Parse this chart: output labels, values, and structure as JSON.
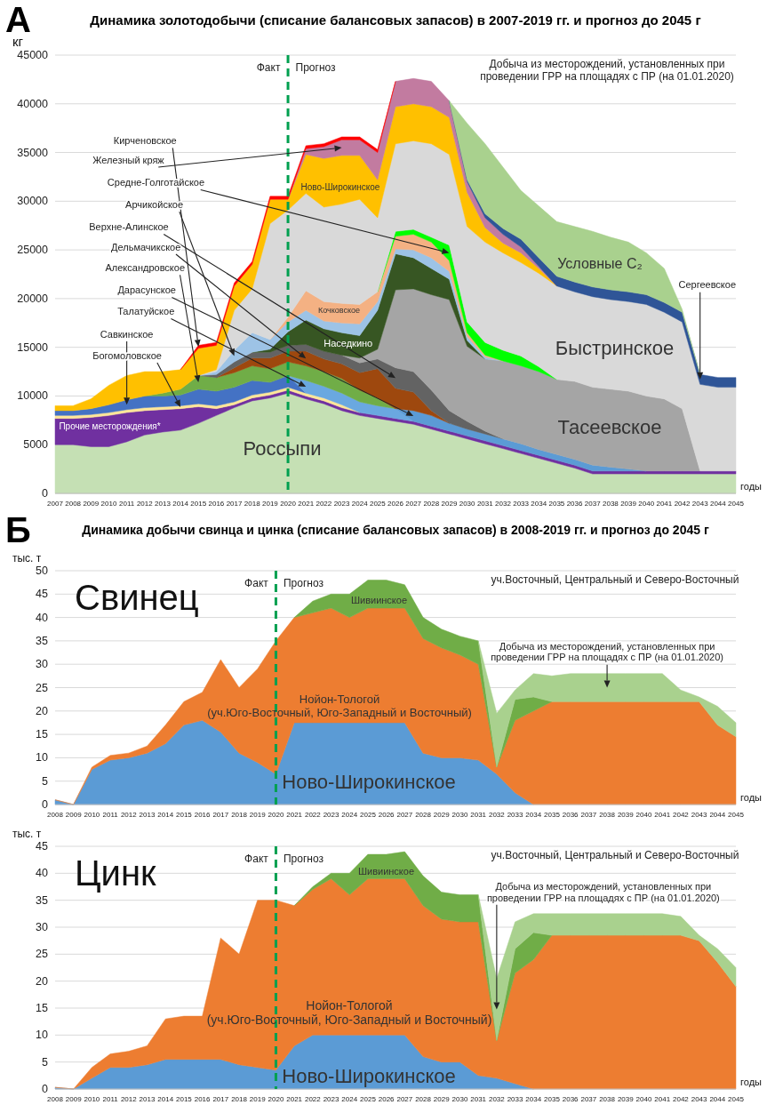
{
  "chart_data": [
    {
      "type": "area",
      "stacked": true,
      "title": "Динамика золотодобычи (списание балансовых запасов) в 2007-2019 гг. и прогноз до 2045 г",
      "xlabel": "годы",
      "ylabel": "кг",
      "grid": "y",
      "x": [
        2007,
        2008,
        2009,
        2010,
        2011,
        2012,
        2013,
        2014,
        2015,
        2016,
        2017,
        2018,
        2019,
        2020,
        2021,
        2022,
        2023,
        2024,
        2025,
        2026,
        2027,
        2028,
        2029,
        2030,
        2031,
        2032,
        2033,
        2034,
        2035,
        2036,
        2037,
        2038,
        2039,
        2040,
        2041,
        2042,
        2043,
        2044,
        2045
      ],
      "xlim": [
        2007,
        2045
      ],
      "xticks": [
        2007,
        2008,
        2009,
        2010,
        2011,
        2012,
        2013,
        2014,
        2015,
        2016,
        2017,
        2018,
        2019,
        2020,
        2021,
        2022,
        2023,
        2024,
        2025,
        2026,
        2027,
        2028,
        2029,
        2030,
        2031,
        2032,
        2033,
        2034,
        2035,
        2036,
        2037,
        2038,
        2039,
        2040,
        2041,
        2042,
        2043,
        2044,
        2045
      ],
      "ylim": [
        0,
        45000
      ],
      "yticks": [
        0,
        5000,
        10000,
        15000,
        20000,
        25000,
        30000,
        35000,
        40000,
        45000
      ],
      "ref_lines": [
        {
          "axis": "x",
          "value": 2020,
          "color": "#00a050",
          "line_style": "dashed"
        }
      ],
      "annotations": [
        "А",
        "Факт",
        "Прогноз",
        "Добыча из месторождений, установленных при\nпроведении ГРР на площадях с ПР (на 01.01.2020)"
      ],
      "series": [
        {
          "name": "Россыпи",
          "color": "#c5e0b4",
          "values": [
            5000,
            5000,
            4800,
            4800,
            5300,
            6000,
            6300,
            6500,
            7200,
            8000,
            8800,
            9500,
            9800,
            10300,
            9700,
            9200,
            8500,
            8000,
            7700,
            7400,
            7100,
            6600,
            6100,
            5600,
            5100,
            4600,
            4100,
            3600,
            3100,
            2600,
            2000,
            2000,
            2000,
            2000,
            2000,
            2000,
            2000,
            2000,
            2000
          ]
        },
        {
          "name": "Прочие месторождения*",
          "color": "#7030a0",
          "values": [
            2700,
            2700,
            3000,
            3200,
            3000,
            2500,
            2300,
            2200,
            1700,
            700,
            300,
            300,
            300,
            300,
            300,
            300,
            300,
            300,
            300,
            300,
            300,
            300,
            300,
            300,
            300,
            300,
            300,
            300,
            300,
            300,
            300,
            300,
            300,
            300,
            300,
            300,
            300,
            300,
            300
          ]
        },
        {
          "name": "Богомоловское",
          "color": "#ffe699",
          "values": [
            300,
            300,
            300,
            300,
            300,
            300,
            300,
            300,
            300,
            300,
            300,
            300,
            300,
            300,
            300,
            300,
            300,
            0,
            null,
            null,
            null,
            null,
            null,
            null,
            null,
            null,
            null,
            null,
            null,
            null,
            null,
            null,
            null,
            null,
            null,
            null,
            null,
            null,
            null
          ]
        },
        {
          "name": "Савкинское",
          "color": "#4472c4",
          "values": [
            500,
            500,
            600,
            800,
            1000,
            1200,
            1100,
            1100,
            1500,
            1500,
            1500,
            1500,
            1000,
            1200,
            0,
            null,
            null,
            null,
            null,
            null,
            null,
            null,
            null,
            null,
            null,
            null,
            null,
            null,
            null,
            null,
            null,
            null,
            null,
            null,
            null,
            null,
            null,
            null,
            null
          ]
        },
        {
          "name": "Талатуйское",
          "color": "#6aa8e0",
          "values": [
            null,
            null,
            null,
            null,
            null,
            null,
            null,
            null,
            null,
            null,
            null,
            null,
            null,
            0,
            1300,
            1200,
            1200,
            1100,
            1000,
            1000,
            0,
            null,
            null,
            null,
            null,
            null,
            null,
            null,
            null,
            null,
            null,
            null,
            null,
            null,
            null,
            null,
            null,
            null,
            null
          ]
        },
        {
          "name": "Дарасунское",
          "color": "#5b9bd5",
          "values": [
            null,
            null,
            null,
            null,
            null,
            null,
            null,
            null,
            null,
            null,
            null,
            null,
            null,
            null,
            null,
            null,
            null,
            null,
            null,
            0,
            1100,
            1100,
            800,
            700,
            700,
            700,
            700,
            600,
            600,
            600,
            600,
            400,
            200,
            0,
            null,
            null,
            null,
            null,
            null
          ]
        },
        {
          "name": "Александровское",
          "color": "#70ad47",
          "values": [
            null,
            null,
            null,
            null,
            null,
            0,
            300,
            600,
            1400,
            1400,
            1500,
            1500,
            1400,
            1400,
            1500,
            1500,
            1500,
            1200,
            800,
            0,
            null,
            null,
            null,
            null,
            null,
            null,
            null,
            null,
            null,
            null,
            null,
            null,
            null,
            null,
            null,
            null,
            null,
            null,
            null
          ]
        },
        {
          "name": "Дельмачикское",
          "color": "#9e480e",
          "values": [
            null,
            null,
            null,
            null,
            null,
            null,
            null,
            null,
            null,
            0,
            500,
            800,
            1100,
            1100,
            1500,
            1300,
            1500,
            1800,
            3000,
            2100,
            1900,
            500,
            0,
            null,
            null,
            null,
            null,
            null,
            null,
            null,
            null,
            null,
            null,
            null,
            null,
            null,
            null,
            null,
            null
          ]
        },
        {
          "name": "Верхне-Алинское",
          "color": "#636363",
          "values": [
            null,
            null,
            null,
            null,
            null,
            null,
            null,
            null,
            0,
            300,
            600,
            600,
            600,
            600,
            700,
            800,
            900,
            1000,
            1000,
            2100,
            2100,
            2100,
            1300,
            800,
            300,
            0,
            null,
            null,
            null,
            null,
            null,
            null,
            null,
            null,
            null,
            null,
            null,
            null,
            null
          ]
        },
        {
          "name": "Тасеевское",
          "color": "#a5a5a5",
          "values": [
            null,
            null,
            null,
            null,
            null,
            null,
            null,
            null,
            null,
            null,
            null,
            null,
            null,
            null,
            null,
            null,
            0,
            500,
            1000,
            8000,
            8500,
            9800,
            11400,
            7700,
            7400,
            8000,
            8000,
            8000,
            7700,
            8000,
            8000,
            8000,
            8000,
            7700,
            7400,
            6400,
            0,
            null,
            null
          ]
        },
        {
          "name": "Наседкино",
          "color": "#375623",
          "values": [
            null,
            null,
            null,
            null,
            null,
            null,
            null,
            null,
            null,
            null,
            null,
            0,
            300,
            1400,
            2500,
            2300,
            2300,
            2300,
            4000,
            3700,
            3200,
            2700,
            2100,
            600,
            0,
            null,
            null,
            null,
            null,
            null,
            null,
            null,
            null,
            null,
            null,
            null,
            null,
            null,
            null
          ]
        },
        {
          "name": "Арчикойское",
          "color": "#9dc3e6",
          "values": [
            null,
            null,
            null,
            null,
            null,
            null,
            null,
            null,
            0,
            300,
            1200,
            2000,
            1000,
            1000,
            1000,
            800,
            1000,
            1200,
            900,
            500,
            800,
            1100,
            800,
            400,
            200,
            0,
            null,
            null,
            null,
            null,
            null,
            null,
            null,
            null,
            null,
            null,
            null,
            null,
            null
          ]
        },
        {
          "name": "Кочковское",
          "color": "#f4b183",
          "values": [
            null,
            null,
            null,
            null,
            null,
            null,
            null,
            null,
            null,
            null,
            null,
            null,
            0,
            500,
            2000,
            2000,
            2000,
            2000,
            1000,
            1300,
            1600,
            1600,
            1100,
            400,
            200,
            0,
            null,
            null,
            null,
            null,
            null,
            null,
            null,
            null,
            null,
            null,
            null,
            null,
            null
          ]
        },
        {
          "name": "Средне-Голготайское",
          "color": "#00ff00",
          "values": [
            null,
            null,
            null,
            null,
            null,
            null,
            null,
            null,
            null,
            null,
            null,
            null,
            null,
            null,
            null,
            null,
            null,
            null,
            0,
            500,
            500,
            500,
            1600,
            1100,
            1300,
            1100,
            1000,
            500,
            0,
            null,
            null,
            null,
            null,
            null,
            null,
            null,
            null,
            null,
            null
          ]
        },
        {
          "name": "Быстринское",
          "color": "#d9d9d9",
          "values": [
            null,
            null,
            null,
            null,
            null,
            null,
            null,
            null,
            0,
            200,
            4100,
            4500,
            11900,
            11000,
            10000,
            9700,
            10200,
            10800,
            7600,
            9000,
            9100,
            9600,
            9300,
            9800,
            10300,
            10000,
            9600,
            9600,
            9600,
            9200,
            9300,
            9200,
            9200,
            9400,
            8900,
            8900,
            8900,
            8600,
            8600
          ]
        },
        {
          "name": "Ново-Широкинское",
          "color": "#ffc000",
          "values": [
            500,
            500,
            1000,
            2000,
            2500,
            2500,
            2200,
            2000,
            2800,
            2500,
            2500,
            2500,
            2500,
            1100,
            4000,
            5000,
            5000,
            4500,
            3900,
            3800,
            3800,
            3800,
            3800,
            3500,
            1500,
            1000,
            1000,
            500,
            0,
            null,
            null,
            null,
            null,
            null,
            null,
            null,
            null,
            null,
            null
          ]
        },
        {
          "name": "Железный кряж",
          "color": "#c27ba0",
          "values": [
            null,
            null,
            null,
            null,
            null,
            null,
            null,
            null,
            null,
            null,
            null,
            null,
            null,
            0,
            600,
            1200,
            1600,
            1600,
            2800,
            2600,
            2600,
            2600,
            1700,
            1100,
            1000,
            900,
            600,
            200,
            0,
            null,
            null,
            null,
            null,
            null,
            null,
            null,
            null,
            null,
            null
          ]
        },
        {
          "name": "Кирченовское",
          "color": "#ff0000",
          "values": [
            null,
            null,
            null,
            null,
            null,
            null,
            null,
            0,
            300,
            300,
            300,
            300,
            300,
            300,
            300,
            300,
            300,
            300,
            300,
            0,
            null,
            null,
            null,
            null,
            null,
            null,
            null,
            null,
            null,
            null,
            null,
            null,
            null,
            null,
            null,
            null,
            null,
            null,
            null
          ]
        },
        {
          "name": "Сергеевское",
          "color": "#2f5597",
          "values": [
            null,
            null,
            null,
            null,
            null,
            null,
            null,
            null,
            null,
            null,
            null,
            null,
            null,
            null,
            null,
            null,
            null,
            null,
            null,
            null,
            null,
            null,
            0,
            200,
            400,
            600,
            800,
            900,
            1000,
            1000,
            1000,
            1000,
            1000,
            1000,
            1000,
            1000,
            1000,
            1000,
            1000
          ]
        },
        {
          "name": "Условные C₂",
          "color": "#a9d18e",
          "values": [
            null,
            null,
            null,
            null,
            null,
            null,
            null,
            null,
            null,
            null,
            null,
            null,
            null,
            null,
            null,
            null,
            null,
            null,
            null,
            null,
            null,
            null,
            0,
            5800,
            7200,
            6300,
            5000,
            5300,
            5600,
            5700,
            5700,
            5400,
            5100,
            4300,
            3500,
            300,
            0,
            null,
            null
          ]
        }
      ]
    },
    {
      "type": "area",
      "stacked": true,
      "title": "Динамика добычи свинца и цинка (списание балансовых запасов) в 2008-2019 гг. и прогноз до 2045 г",
      "subtitle": "Свинец",
      "xlabel": "годы",
      "ylabel": "тыс. т",
      "grid": "y",
      "x": [
        2008,
        2009,
        2010,
        2011,
        2012,
        2013,
        2014,
        2015,
        2016,
        2017,
        2018,
        2019,
        2020,
        2021,
        2022,
        2023,
        2024,
        2025,
        2026,
        2027,
        2028,
        2029,
        2030,
        2031,
        2032,
        2033,
        2034,
        2035,
        2036,
        2037,
        2038,
        2039,
        2040,
        2041,
        2042,
        2043,
        2044,
        2045
      ],
      "xlim": [
        2008,
        2045
      ],
      "xticks": [
        2008,
        2009,
        2010,
        2011,
        2012,
        2013,
        2014,
        2015,
        2016,
        2017,
        2018,
        2019,
        2020,
        2021,
        2022,
        2023,
        2024,
        2025,
        2026,
        2027,
        2028,
        2029,
        2030,
        2031,
        2032,
        2033,
        2034,
        2035,
        2036,
        2037,
        2038,
        2039,
        2040,
        2041,
        2042,
        2043,
        2044,
        2045
      ],
      "ylim": [
        0,
        50
      ],
      "yticks": [
        0,
        5,
        10,
        15,
        20,
        25,
        30,
        35,
        40,
        45,
        50
      ],
      "ref_lines": [
        {
          "axis": "x",
          "value": 2020,
          "color": "#00a050",
          "line_style": "dashed"
        }
      ],
      "annotations": [
        "Б",
        "Факт",
        "Прогноз",
        "уч.Восточный, Центральный и Северо-Восточный"
      ],
      "series": [
        {
          "name": "Ново-Широкинское",
          "color": "#5b9bd5",
          "values": [
            1,
            0,
            7.5,
            9.5,
            10,
            11,
            13,
            17,
            18,
            15.5,
            11,
            9,
            6.5,
            17.5,
            17.5,
            17.5,
            17.5,
            17.5,
            17.5,
            17.5,
            11,
            10,
            10,
            9.5,
            6.5,
            2.5,
            0,
            null,
            null,
            null,
            null,
            null,
            null,
            null,
            null,
            null,
            null,
            null
          ]
        },
        {
          "name": "Нойон-Тологой\n(уч.Юго-Восточный, Юго-Западный и Восточный)",
          "color": "#ed7d31",
          "values": [
            0,
            0,
            0.5,
            1,
            1,
            1.5,
            4,
            5,
            6,
            15.5,
            14,
            20,
            28.5,
            22.5,
            23.5,
            24.5,
            22.5,
            24.5,
            24.5,
            24.5,
            24.5,
            23.5,
            22,
            20.5,
            1.5,
            15.5,
            20,
            22,
            22,
            22,
            22,
            22,
            22,
            22,
            22,
            22,
            17,
            14.5
          ]
        },
        {
          "name": "Шивиинское",
          "color": "#70ad47",
          "values": [
            null,
            null,
            null,
            null,
            null,
            null,
            null,
            null,
            null,
            null,
            null,
            null,
            null,
            0,
            2.5,
            3,
            5,
            6,
            6,
            5,
            4.5,
            4,
            4,
            5,
            0,
            4.5,
            3,
            0,
            null,
            null,
            null,
            null,
            null,
            null,
            null,
            null,
            null,
            null
          ]
        },
        {
          "name": "Добыча из месторождений, установленных при\nпроведении ГРР на площадях с ПР (на 01.01.2020)",
          "color": "#a9d18e",
          "values": [
            null,
            null,
            null,
            null,
            null,
            null,
            null,
            null,
            null,
            null,
            null,
            null,
            null,
            null,
            null,
            null,
            null,
            null,
            null,
            null,
            null,
            null,
            null,
            0,
            11.5,
            2,
            5,
            5.5,
            6,
            6,
            6,
            6,
            6,
            6,
            2.5,
            1,
            4,
            3
          ]
        }
      ]
    },
    {
      "type": "area",
      "stacked": true,
      "subtitle": "Цинк",
      "xlabel": "годы",
      "ylabel": "тыс. т",
      "grid": "y",
      "x": [
        2008,
        2009,
        2010,
        2011,
        2012,
        2013,
        2014,
        2015,
        2016,
        2017,
        2018,
        2019,
        2020,
        2021,
        2022,
        2023,
        2024,
        2025,
        2026,
        2027,
        2028,
        2029,
        2030,
        2031,
        2032,
        2033,
        2034,
        2035,
        2036,
        2037,
        2038,
        2039,
        2040,
        2041,
        2042,
        2043,
        2044,
        2045
      ],
      "xlim": [
        2008,
        2045
      ],
      "xticks": [
        2008,
        2009,
        2010,
        2011,
        2012,
        2013,
        2014,
        2015,
        2016,
        2017,
        2018,
        2019,
        2020,
        2021,
        2022,
        2023,
        2024,
        2025,
        2026,
        2027,
        2028,
        2029,
        2030,
        2031,
        2032,
        2033,
        2034,
        2035,
        2036,
        2037,
        2038,
        2039,
        2040,
        2041,
        2042,
        2043,
        2044,
        2045
      ],
      "ylim": [
        0,
        45
      ],
      "yticks": [
        0,
        5,
        10,
        15,
        20,
        25,
        30,
        35,
        40,
        45
      ],
      "ref_lines": [
        {
          "axis": "x",
          "value": 2020,
          "color": "#00a050",
          "line_style": "dashed"
        }
      ],
      "annotations": [
        "Факт",
        "Прогноз",
        "уч.Восточный, Центральный и Северо-Восточный"
      ],
      "series": [
        {
          "name": "Ново-Широкинское",
          "color": "#5b9bd5",
          "values": [
            0.3,
            0,
            2,
            4,
            4,
            4.5,
            5.5,
            5.5,
            5.5,
            5.5,
            4.5,
            4,
            3.5,
            8,
            10,
            10,
            10,
            10,
            10,
            10,
            6,
            5,
            5,
            2.5,
            2,
            1,
            0,
            null,
            null,
            null,
            null,
            null,
            null,
            null,
            null,
            null,
            null,
            null
          ]
        },
        {
          "name": "Нойон-Тологой\n(уч.Юго-Восточный, Юго-Западный и Восточный)",
          "color": "#ed7d31",
          "values": [
            0,
            0,
            2,
            2.5,
            3,
            3.5,
            7.5,
            8,
            8,
            22.5,
            20.5,
            31,
            31.5,
            26,
            27,
            29,
            26,
            29,
            29,
            29,
            28,
            26.5,
            26,
            28.5,
            7,
            20.5,
            24,
            28.5,
            28.5,
            28.5,
            28.5,
            28.5,
            28.5,
            28.5,
            28.5,
            27.5,
            23.5,
            19
          ]
        },
        {
          "name": "Шивиинское",
          "color": "#70ad47",
          "values": [
            null,
            null,
            null,
            null,
            null,
            null,
            null,
            null,
            null,
            null,
            null,
            null,
            null,
            0,
            0.5,
            1,
            4,
            4.5,
            4.5,
            5,
            5.5,
            5,
            5,
            5,
            0,
            4.5,
            5,
            0,
            null,
            null,
            null,
            null,
            null,
            null,
            null,
            null,
            null,
            null
          ]
        },
        {
          "name": "Добыча из месторождений, установленных при\nпроведении ГРР на площадях с ПР (на 01.01.2020)",
          "color": "#a9d18e",
          "values": [
            null,
            null,
            null,
            null,
            null,
            null,
            null,
            null,
            null,
            null,
            null,
            null,
            null,
            null,
            null,
            null,
            null,
            null,
            null,
            null,
            null,
            null,
            null,
            0,
            11.5,
            5,
            3.5,
            4,
            4,
            4,
            4,
            4,
            4,
            4,
            3.5,
            1,
            2.5,
            3.5
          ]
        }
      ]
    }
  ]
}
